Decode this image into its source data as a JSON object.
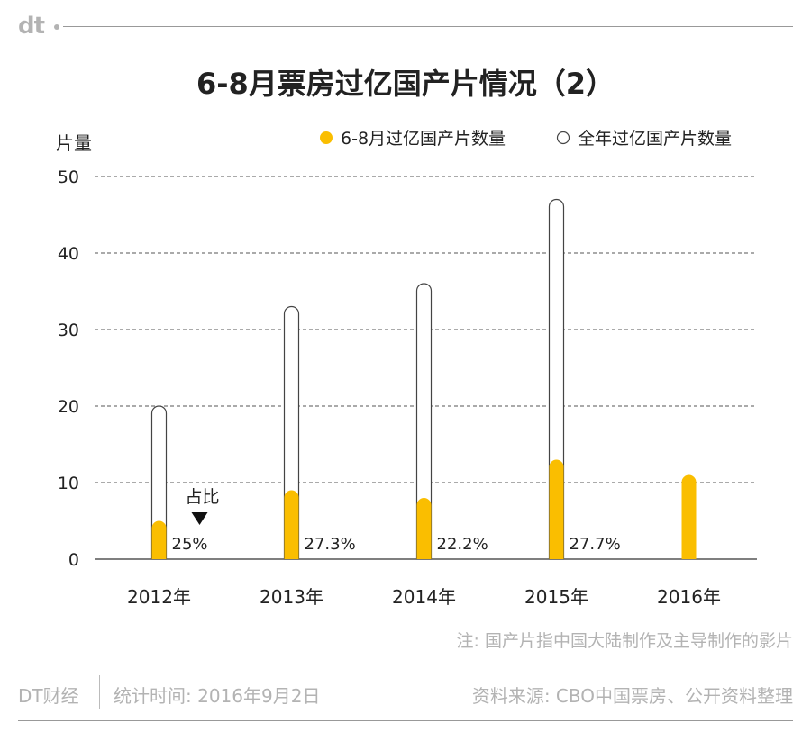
{
  "brand": {
    "logo_text": "dt",
    "name": "DT财经"
  },
  "title": "6-8月票房过亿国产片情况（2）",
  "chart_data": {
    "type": "bar",
    "title": "6-8月票房过亿国产片情况（2）",
    "ylabel": "片量",
    "xlabel": "",
    "ylim": [
      0,
      50
    ],
    "yticks": [
      0,
      10,
      20,
      30,
      40,
      50
    ],
    "grid": true,
    "legend_position": "top-right",
    "categories": [
      "2012年",
      "2013年",
      "2014年",
      "2015年",
      "2016年"
    ],
    "series": [
      {
        "name": "6-8月过亿国产片数量",
        "values": [
          5,
          9,
          8,
          13,
          11
        ],
        "color": "#FABE00"
      },
      {
        "name": "全年过亿国产片数量",
        "values": [
          20,
          33,
          36,
          47,
          null
        ],
        "color": "#FFFFFF"
      }
    ],
    "ratio_label": "占比",
    "ratios": [
      "25%",
      "27.3%",
      "22.2%",
      "27.7%",
      ""
    ]
  },
  "note": "注: 国产片指中国大陆制作及主导制作的影片",
  "footer": {
    "stat_time": "统计时间: 2016年9月2日",
    "source": "资料来源: CBO中国票房、公开资料整理"
  },
  "colors": {
    "accent": "#FABE00",
    "text": "#222222",
    "muted": "#B3B3B3"
  }
}
